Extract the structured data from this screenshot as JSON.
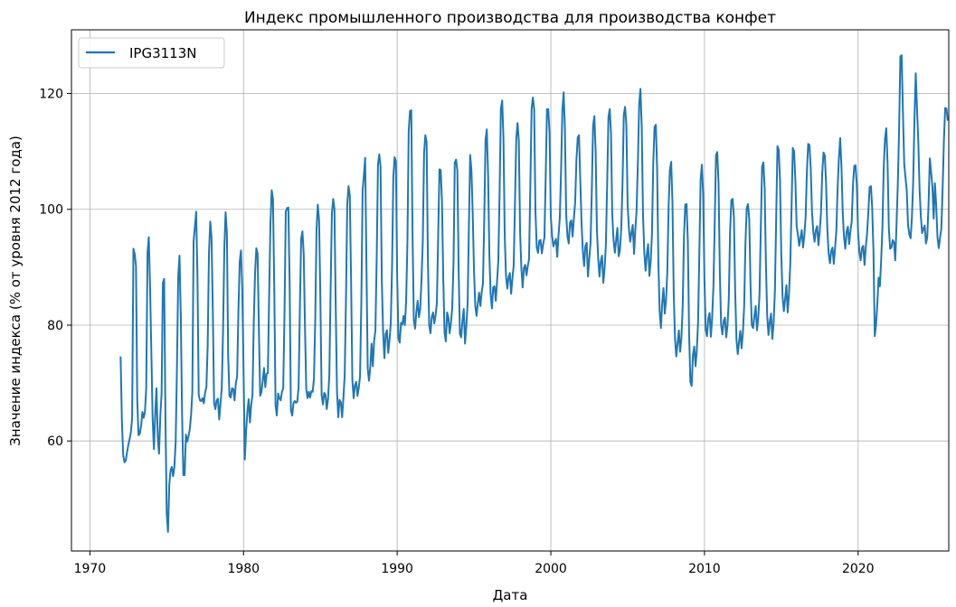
{
  "chart_data": {
    "type": "line",
    "title": "Индекс промышленного производства для производства конфет",
    "xlabel": "Дата",
    "ylabel": "Значение индекса (% от уровня 2012 года)",
    "xlim": [
      1968.8,
      2025.9
    ],
    "ylim": [
      41,
      131
    ],
    "xticks": [
      1970,
      1980,
      1990,
      2000,
      2010,
      2020
    ],
    "yticks": [
      60,
      80,
      100,
      120
    ],
    "xtick_labels": [
      "1970",
      "1980",
      "1990",
      "2000",
      "2010",
      "2020"
    ],
    "ytick_labels": [
      "60",
      "80",
      "100",
      "120"
    ],
    "grid": true,
    "legend_position": "top-left",
    "series": [
      {
        "name": "IPG3113N",
        "color": "#1f77b4",
        "x_start": 1972.0,
        "x_step": 0.0833333,
        "values": [
          74.6,
          63.5,
          57.6,
          56.3,
          56.6,
          58.0,
          59.3,
          60.3,
          61.5,
          63.9,
          93.2,
          92.3,
          90.2,
          67.0,
          61.0,
          61.3,
          62.6,
          65.0,
          64.0,
          65.0,
          69.1,
          92.5,
          95.2,
          86.6,
          75.3,
          63.9,
          58.6,
          64.6,
          69.1,
          60.8,
          57.8,
          64.3,
          68.1,
          87.3,
          88.0,
          64.1,
          47.5,
          44.3,
          52.4,
          55.0,
          55.5,
          53.9,
          55.5,
          59.8,
          72.7,
          88.5,
          92.0,
          81.5,
          64.6,
          54.1,
          54.1,
          61.1,
          59.9,
          60.8,
          62.0,
          64.4,
          68.4,
          94.5,
          96.9,
          99.6,
          88.7,
          67.9,
          67.0,
          66.9,
          67.4,
          66.5,
          68.4,
          69.3,
          76.5,
          92.4,
          97.9,
          95.2,
          82.6,
          66.6,
          65.5,
          67.0,
          67.3,
          63.7,
          66.5,
          69.1,
          79.0,
          93.2,
          99.5,
          95.9,
          74.7,
          67.8,
          67.5,
          69.1,
          69.0,
          67.0,
          70.0,
          71.1,
          82.5,
          90.9,
          92.9,
          86.4,
          72.5,
          56.8,
          61.7,
          65.0,
          67.2,
          63.2,
          66.3,
          67.9,
          80.6,
          88.9,
          93.3,
          92.3,
          79.2,
          67.8,
          68.5,
          70.4,
          72.6,
          69.3,
          71.6,
          71.7,
          85.0,
          97.5,
          103.3,
          101.7,
          86.4,
          66.2,
          64.4,
          68.2,
          67.4,
          67.0,
          68.5,
          69.1,
          82.1,
          99.6,
          100.2,
          100.3,
          87.4,
          65.3,
          64.4,
          66.5,
          66.9,
          66.6,
          66.8,
          69.3,
          82.8,
          94.9,
          96.2,
          92.3,
          79.6,
          68.9,
          67.4,
          68.5,
          67.5,
          68.6,
          68.5,
          70.7,
          80.9,
          96.4,
          100.8,
          98.1,
          84.9,
          67.9,
          66.3,
          68.3,
          68.0,
          65.5,
          67.3,
          71.3,
          85.9,
          99.2,
          101.8,
          100.1,
          83.2,
          68.6,
          64.1,
          67.1,
          66.7,
          64.1,
          67.4,
          71.3,
          84.2,
          100.8,
          104.0,
          102.4,
          87.6,
          70.5,
          67.4,
          69.6,
          70.2,
          67.8,
          69.2,
          71.2,
          83.9,
          103.2,
          105.9,
          108.9,
          90.3,
          72.5,
          70.4,
          72.8,
          76.8,
          72.9,
          77.3,
          79.1,
          91.5,
          107.7,
          109.5,
          107.4,
          87.8,
          78.9,
          74.3,
          78.5,
          79.1,
          75.2,
          77.4,
          80.3,
          90.1,
          105.6,
          109.0,
          108.3,
          88.4,
          77.7,
          77.0,
          80.4,
          80.1,
          81.6,
          80.0,
          84.2,
          94.4,
          113.5,
          117.0,
          117.1,
          95.7,
          80.9,
          79.4,
          82.3,
          84.2,
          81.4,
          82.8,
          87.9,
          94.4,
          109.7,
          112.8,
          111.6,
          91.1,
          80.1,
          78.6,
          81.4,
          82.2,
          80.3,
          81.7,
          83.8,
          95.2,
          106.9,
          106.8,
          101.3,
          88.0,
          78.7,
          77.2,
          82.2,
          81.3,
          78.6,
          80.5,
          82.9,
          90.8,
          108.1,
          108.6,
          106.7,
          89.6,
          78.5,
          77.9,
          80.8,
          82.8,
          76.8,
          79.8,
          83.6,
          96.8,
          109.4,
          106.7,
          99.3,
          89.4,
          83.3,
          81.6,
          83.8,
          85.6,
          83.3,
          85.7,
          87.2,
          98.2,
          112.0,
          113.8,
          106.0,
          92.1,
          85.3,
          82.9,
          86.5,
          86.7,
          84.2,
          87.5,
          91.2,
          103.0,
          117.4,
          118.8,
          112.3,
          95.4,
          88.5,
          86.3,
          88.3,
          89.0,
          85.4,
          88.1,
          90.3,
          101.0,
          112.2,
          114.9,
          111.9,
          96.1,
          89.8,
          86.5,
          89.9,
          90.4,
          88.6,
          90.2,
          91.4,
          104.1,
          117.4,
          119.3,
          117.2,
          99.6,
          93.4,
          92.5,
          94.6,
          94.7,
          92.4,
          94.0,
          95.1,
          105.7,
          117.3,
          117.3,
          113.2,
          98.7,
          95.4,
          93.6,
          94.3,
          94.9,
          91.8,
          95.5,
          98.5,
          106.6,
          117.0,
          120.2,
          113.9,
          99.1,
          95.3,
          94.1,
          97.7,
          98.1,
          95.3,
          98.4,
          101.2,
          108.5,
          112.4,
          112.8,
          105.1,
          97.6,
          92.8,
          90.2,
          93.7,
          94.2,
          88.4,
          91.4,
          94.1,
          103.1,
          114.4,
          116.1,
          110.1,
          96.4,
          91.5,
          88.4,
          91.0,
          92.0,
          87.3,
          89.8,
          93.9,
          104.4,
          115.9,
          117.3,
          113.2,
          99.0,
          94.7,
          92.5,
          94.7,
          96.8,
          91.9,
          93.0,
          96.6,
          104.5,
          116.3,
          117.7,
          114.6,
          100.7,
          96.7,
          94.4,
          96.0,
          97.3,
          92.3,
          96.5,
          99.9,
          108.1,
          118.2,
          120.8,
          114.3,
          99.1,
          92.6,
          89.4,
          92.2,
          94.0,
          88.5,
          91.0,
          95.7,
          107.9,
          114.2,
          114.6,
          107.3,
          90.9,
          82.3,
          79.5,
          83.9,
          86.4,
          82.0,
          84.4,
          89.3,
          100.5,
          106.8,
          108.2,
          101.2,
          85.4,
          77.6,
          74.6,
          76.9,
          79.1,
          75.4,
          77.9,
          83.3,
          95.3,
          100.8,
          100.9,
          94.6,
          78.6,
          70.2,
          69.5,
          74.8,
          76.3,
          72.9,
          75.6,
          80.4,
          92.4,
          105.1,
          107.7,
          102.5,
          87.6,
          79.2,
          78.1,
          81.2,
          82.1,
          78.0,
          81.3,
          86.7,
          97.5,
          109.4,
          109.9,
          104.5,
          89.2,
          80.1,
          78.4,
          80.7,
          81.3,
          77.9,
          80.0,
          84.4,
          96.1,
          101.6,
          101.8,
          98.6,
          85.7,
          77.5,
          75.0,
          77.1,
          79.0,
          76.0,
          78.7,
          83.2,
          94.1,
          100.2,
          100.9,
          98.2,
          86.5,
          80.0,
          79.5,
          81.6,
          83.3,
          79.1,
          81.2,
          85.4,
          96.8,
          107.3,
          108.1,
          103.8,
          90.5,
          81.6,
          78.3,
          80.6,
          82.0,
          77.6,
          80.3,
          85.8,
          98.3,
          110.9,
          110.3,
          105.0,
          92.2,
          84.9,
          82.4,
          84.5,
          86.9,
          82.2,
          85.3,
          90.4,
          100.1,
          110.6,
          110.0,
          104.9,
          97.1,
          95.6,
          93.7,
          95.1,
          96.4,
          93.4,
          95.5,
          98.7,
          106.5,
          111.3,
          111.1,
          107.1,
          99.5,
          96.1,
          94.4,
          96.4,
          97.1,
          93.8,
          96.1,
          99.4,
          106.4,
          109.8,
          109.3,
          104.3,
          96.3,
          92.4,
          90.7,
          92.8,
          93.4,
          90.6,
          93.3,
          96.3,
          103.7,
          108.8,
          112.3,
          107.4,
          99.4,
          95.2,
          93.2,
          96.1,
          97.0,
          94.0,
          96.2,
          97.9,
          104.2,
          107.5,
          107.6,
          104.1,
          95.9,
          92.6,
          91.2,
          93.3,
          93.7,
          90.4,
          93.5,
          95.8,
          99.6,
          103.8,
          104.0,
          100.3,
          92.6,
          78.1,
          80.1,
          83.6,
          88.2,
          86.7,
          91.2,
          96.9,
          107.2,
          112.2,
          114.0,
          108.0,
          96.8,
          93.2,
          93.4,
          94.7,
          94.3,
          91.2,
          97.4,
          104.3,
          113.6,
          126.4,
          126.6,
          116.8,
          107.9,
          105.5,
          103.3,
          97.2,
          95.7,
          95.0,
          98.5,
          104.6,
          115.4,
          123.5,
          117.4,
          111.8,
          103.4,
          98.8,
          95.9,
          96.6,
          97.2,
          94.1,
          95.2,
          100.8,
          108.8,
          106.5,
          104.0,
          98.4,
          104.5,
          100.6,
          95.1,
          93.3,
          95.1,
          96.7,
          103.5,
          111.8,
          117.5,
          117.4,
          115.3
        ]
      }
    ]
  }
}
